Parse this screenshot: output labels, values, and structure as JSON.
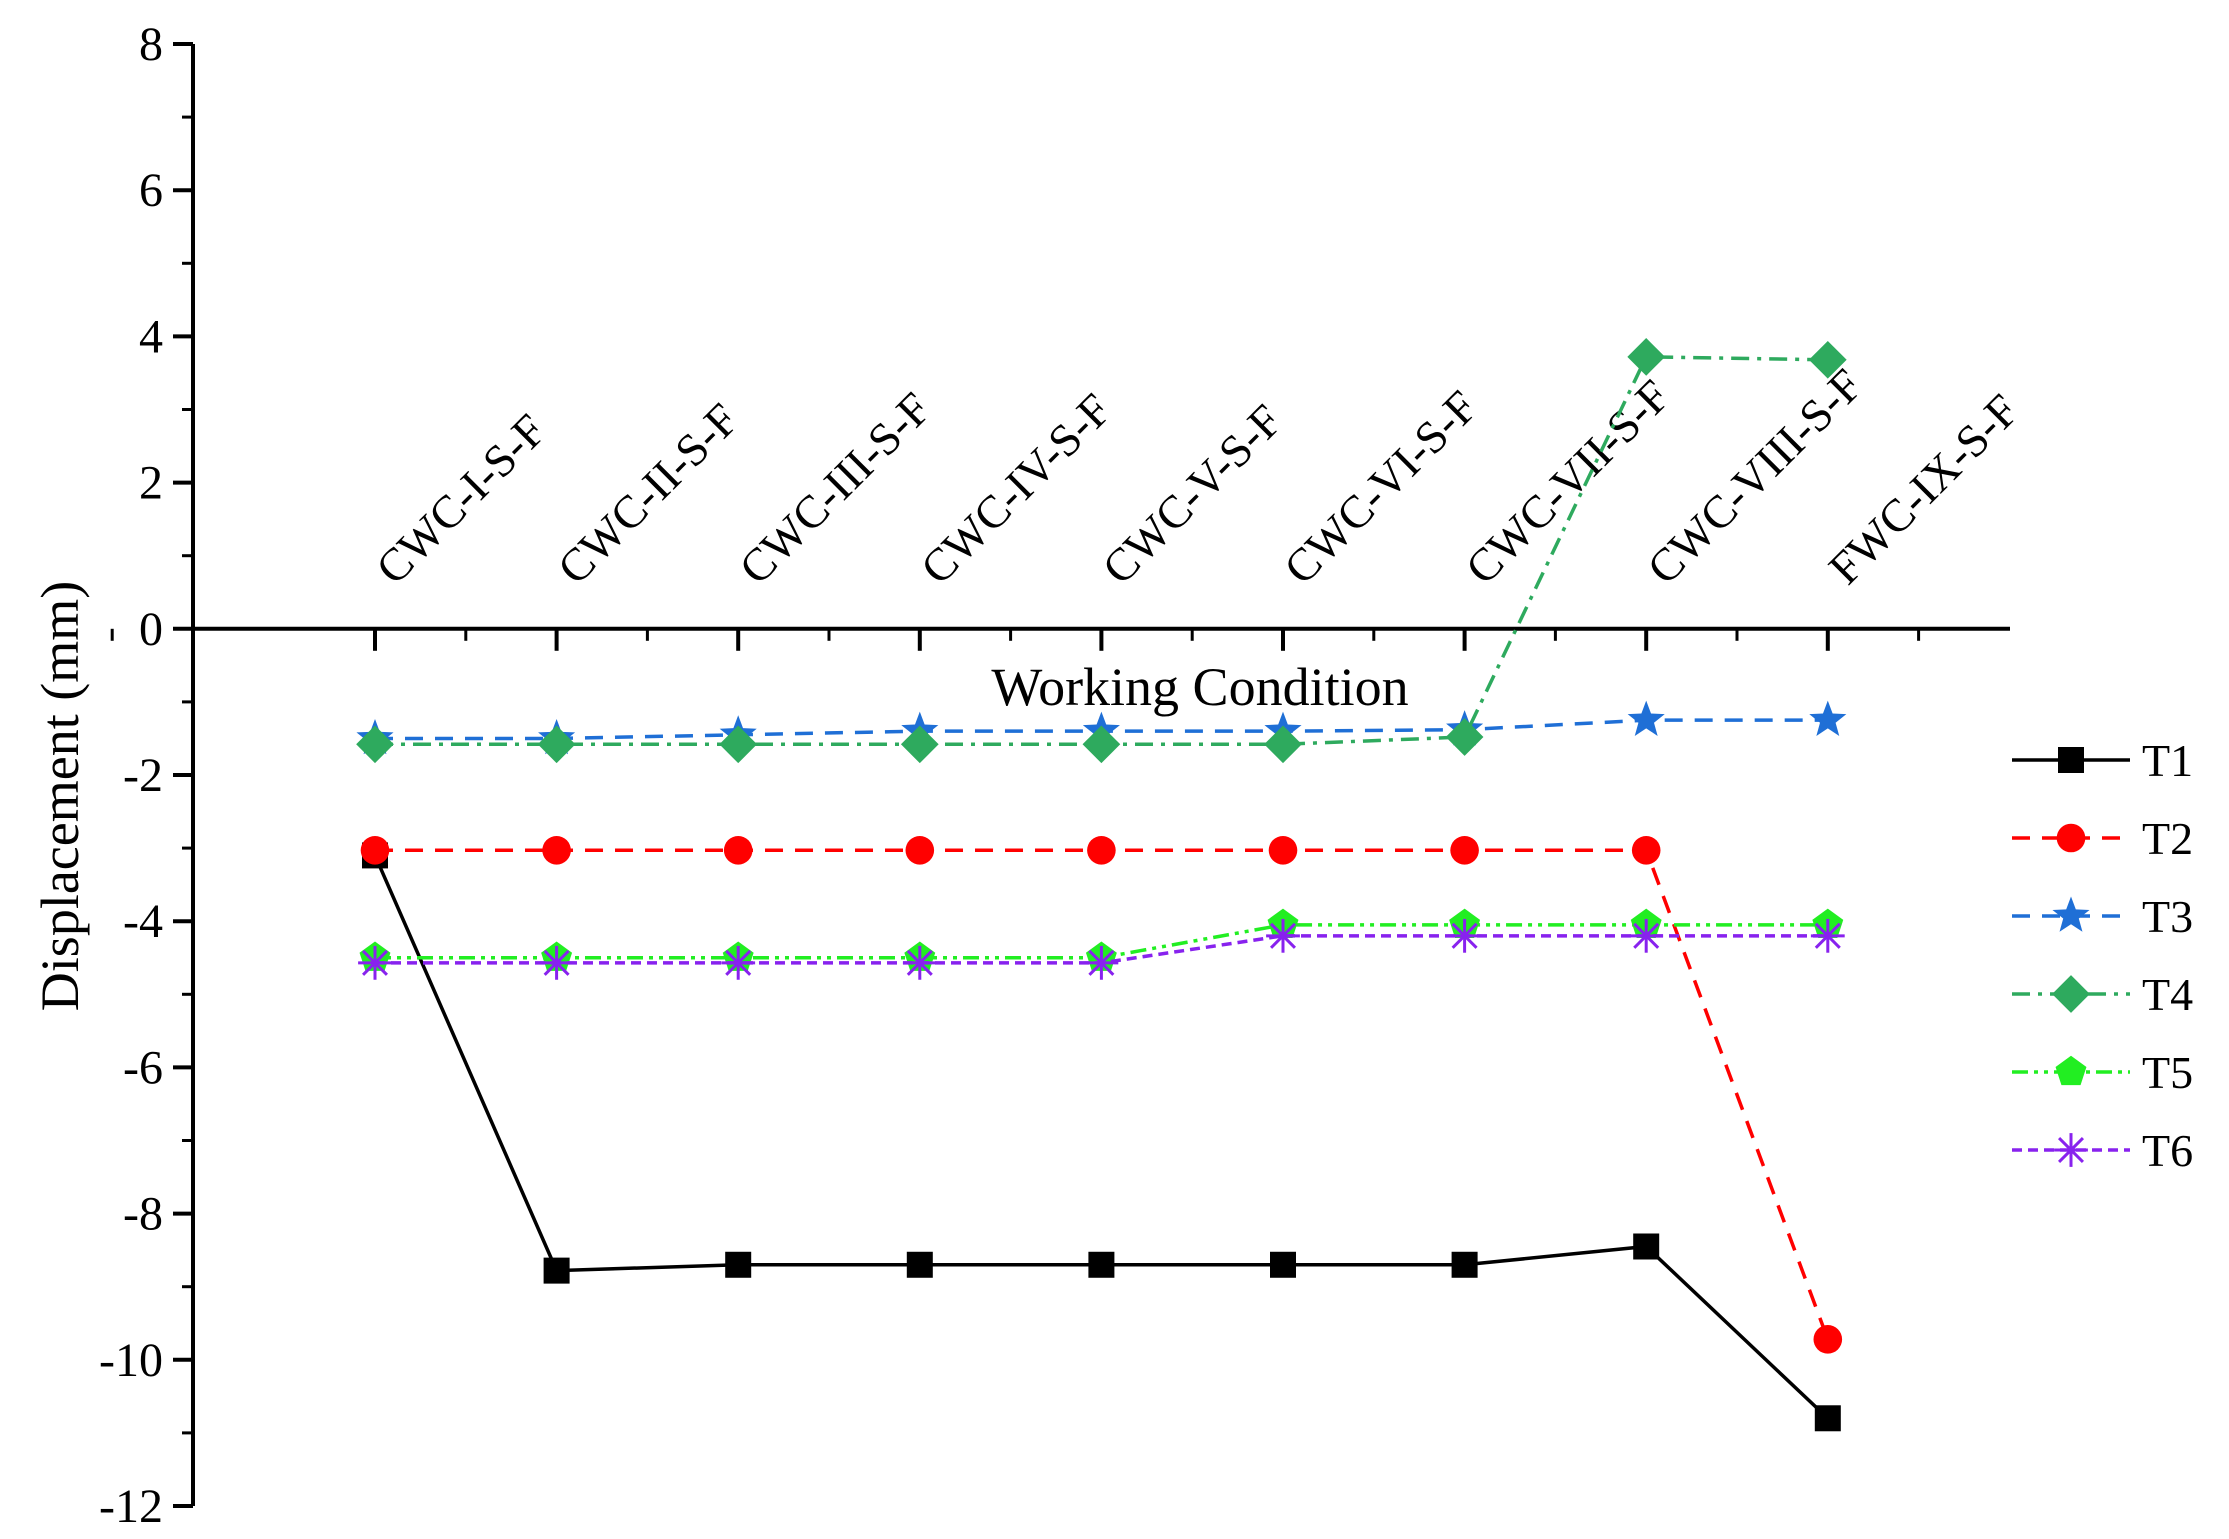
{
  "chart_data": {
    "type": "line",
    "title": "",
    "xlabel": "Working Condition",
    "ylabel": "Displacement (mm)",
    "ylim": [
      -12,
      8
    ],
    "yticks": [
      8,
      6,
      4,
      2,
      0,
      -2,
      -4,
      -6,
      -8,
      -10,
      -12
    ],
    "categories": [
      "CWC-I-S-F",
      "CWC-II-S-F",
      "CWC-III-S-F",
      "CWC-IV-S-F",
      "CWC-V-S-F",
      "CWC-VI-S-F",
      "CWC-VII-S-F",
      "CWC-VIII-S-F",
      "FWC-IX-S-F"
    ],
    "grid": false,
    "legend_position": "right",
    "series": [
      {
        "name": "T1",
        "color": "#000000",
        "marker": "square",
        "dash": "solid",
        "values": [
          -3.1,
          -8.78,
          -8.7,
          -8.7,
          -8.7,
          -8.7,
          -8.7,
          -8.45,
          -10.8
        ]
      },
      {
        "name": "T2",
        "color": "#ff0000",
        "marker": "circle",
        "dash": "dash",
        "values": [
          -3.03,
          -3.03,
          -3.03,
          -3.03,
          -3.03,
          -3.03,
          -3.03,
          -3.03,
          -9.72
        ]
      },
      {
        "name": "T3",
        "color": "#1f6fd6",
        "marker": "star",
        "dash": "dash",
        "values": [
          -1.5,
          -1.5,
          -1.45,
          -1.4,
          -1.4,
          -1.4,
          -1.38,
          -1.25,
          -1.25
        ]
      },
      {
        "name": "T4",
        "color": "#2eaa5e",
        "marker": "diamond",
        "dash": "dashdot",
        "values": [
          -1.58,
          -1.58,
          -1.58,
          -1.58,
          -1.58,
          -1.58,
          -1.48,
          3.72,
          3.68
        ]
      },
      {
        "name": "T5",
        "color": "#22ee22",
        "marker": "pentagon",
        "dash": "dashdotdot",
        "values": [
          -4.5,
          -4.5,
          -4.5,
          -4.5,
          -4.5,
          -4.05,
          -4.05,
          -4.05,
          -4.05
        ]
      },
      {
        "name": "T6",
        "color": "#8822ee",
        "marker": "asterisk",
        "dash": "shortdash",
        "values": [
          -4.57,
          -4.57,
          -4.57,
          -4.57,
          -4.57,
          -4.2,
          -4.2,
          -4.2,
          -4.2
        ]
      }
    ]
  }
}
